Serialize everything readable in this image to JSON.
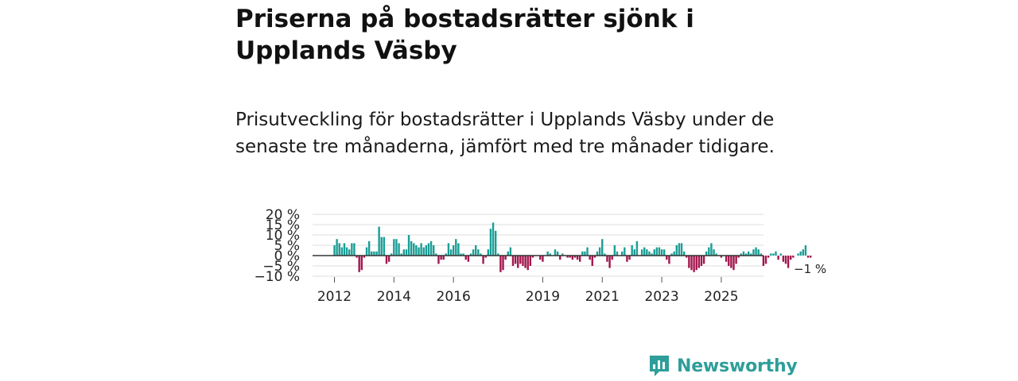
{
  "header": {
    "title": "Priserna på bostadsrätter sjönk i Upplands Väsby",
    "subtitle": "Prisutveckling för bostadsrätter i Upplands Väsby under de senaste tre månaderna, jämfört med tre månader tidigare."
  },
  "brand": {
    "name": "Newsworthy"
  },
  "colors": {
    "positive": "#1a9e96",
    "negative": "#a3164d",
    "grid": "#dddddd",
    "zero": "#333333",
    "brand": "#2e9e9a"
  },
  "chart_data": {
    "type": "bar",
    "title": "",
    "xlabel": "",
    "ylabel": "",
    "ylim": [
      -10,
      20
    ],
    "y_ticks": [
      "20 %",
      "15 %",
      "10 %",
      "5 %",
      "0 %",
      "−5 %",
      "−10 %"
    ],
    "x_tick_labels": [
      "2012",
      "2014",
      "2016",
      "2019",
      "2021",
      "2023",
      "2025"
    ],
    "x_tick_months": [
      24,
      48,
      72,
      108,
      132,
      156,
      180
    ],
    "start_month_index": 24,
    "last_value_label": "−1 %",
    "values": [
      5,
      8,
      6,
      4,
      6,
      4,
      3,
      6,
      6,
      -1,
      -8,
      -7,
      -1,
      4,
      7,
      2,
      2,
      2,
      14,
      9,
      9,
      -4,
      -3,
      1,
      8,
      8,
      6,
      1,
      3,
      3,
      10,
      7,
      6,
      5,
      4,
      6,
      4,
      5,
      6,
      7,
      5,
      1,
      -4,
      -2,
      -2,
      1,
      6,
      3,
      5,
      8,
      6,
      1,
      1,
      -2,
      -3,
      1,
      3,
      5,
      3,
      1,
      -4,
      -1,
      3,
      13,
      16,
      12,
      1,
      -8,
      -7,
      -2,
      2,
      4,
      -5,
      -4,
      -6,
      -4,
      -5,
      -6,
      -7,
      -5,
      -1,
      0,
      0,
      -2,
      -3,
      0,
      2,
      1,
      0,
      3,
      2,
      -2,
      1,
      0,
      -1,
      -1,
      -2,
      -1,
      -2,
      -3,
      2,
      2,
      4,
      -2,
      -5,
      -1,
      2,
      4,
      8,
      1,
      -3,
      -6,
      -2,
      5,
      2,
      0,
      2,
      4,
      -3,
      -2,
      5,
      3,
      7,
      0,
      3,
      4,
      3,
      2,
      1,
      3,
      4,
      4,
      3,
      3,
      -2,
      -4,
      1,
      2,
      5,
      6,
      6,
      2,
      -1,
      -6,
      -7,
      -8,
      -7,
      -6,
      -5,
      -4,
      2,
      4,
      6,
      3,
      1,
      0,
      -1,
      0,
      -3,
      -5,
      -6,
      -7,
      -4,
      -1,
      1,
      2,
      1,
      2,
      1,
      3,
      4,
      3,
      1,
      -5,
      -4,
      -1,
      1,
      1,
      2,
      -2,
      1,
      -3,
      -4,
      -6,
      -2,
      -1,
      0,
      1,
      2,
      3,
      5,
      -1,
      -1
    ]
  }
}
